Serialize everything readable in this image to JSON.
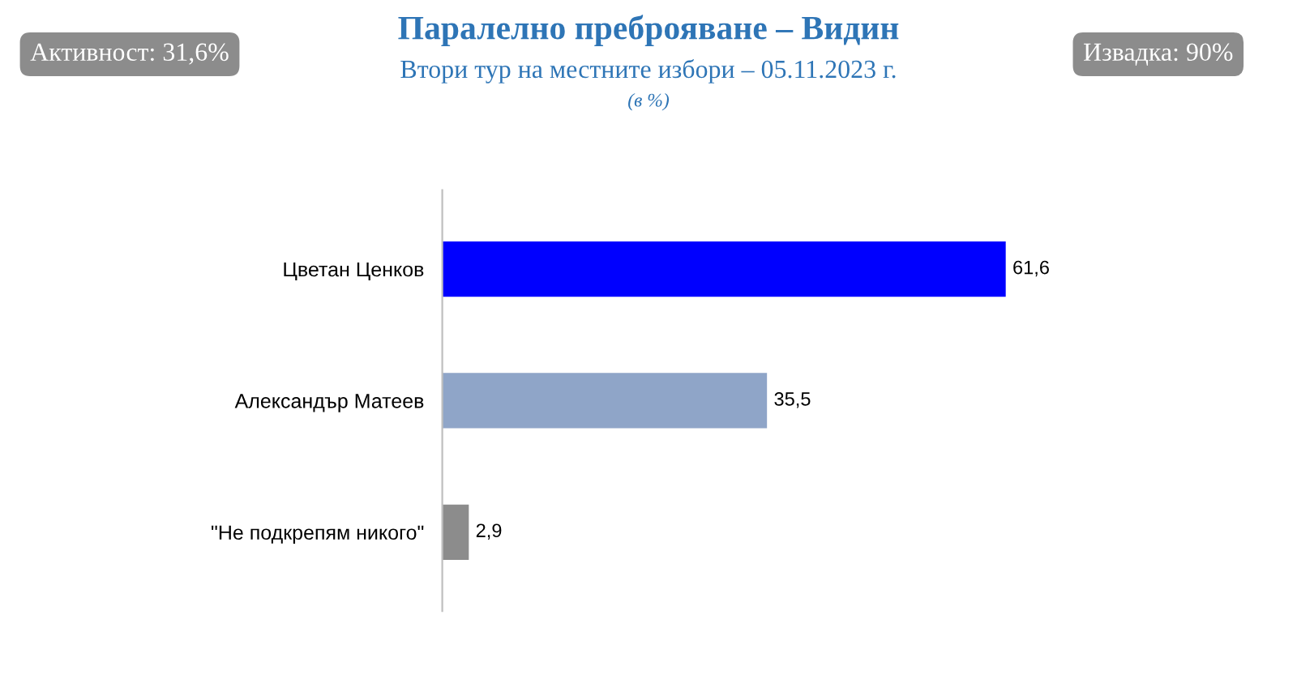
{
  "chart_data": {
    "type": "bar",
    "orientation": "horizontal",
    "title": "Паралелно преброяване – Видин",
    "subtitle": "Втори тур на местните избори – 05.11.2023 г.",
    "categories": [
      "Цветан Ценков",
      "Александър Матеев",
      "\"Не подкрепям никого\""
    ],
    "values": [
      61.6,
      35.5,
      2.9
    ],
    "colors": [
      "#0000ff",
      "#8fa5c8",
      "#8c8c8c"
    ],
    "value_labels": [
      "61,6",
      "35,5",
      "2,9"
    ],
    "annotations": [
      "(в %)",
      "Активност: 31,6%",
      "Извадка: 90%"
    ],
    "grid": false,
    "legend": false
  }
}
